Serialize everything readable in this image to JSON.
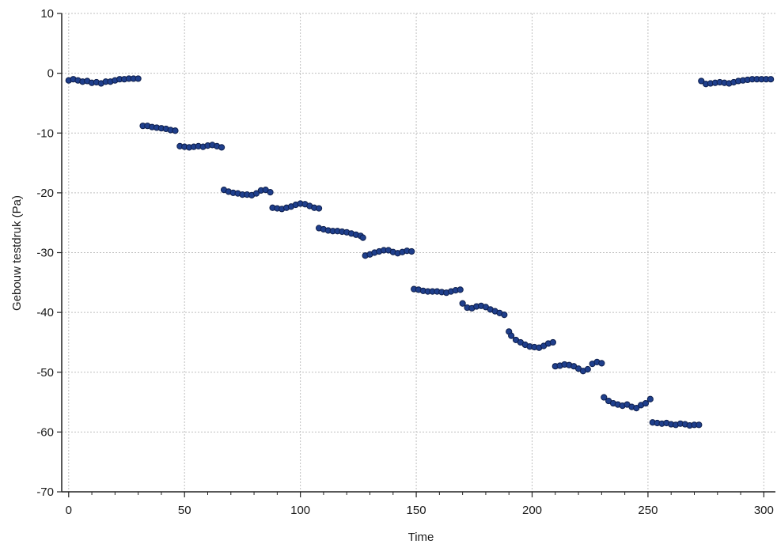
{
  "chart_data": {
    "type": "scatter",
    "title": "",
    "xlabel": "Time",
    "ylabel": "Gebouw testdruk (Pa)",
    "xlim": [
      -3,
      305
    ],
    "ylim": [
      -70,
      10
    ],
    "x_ticks": [
      0,
      50,
      100,
      150,
      200,
      250,
      300
    ],
    "y_ticks": [
      10,
      0,
      -10,
      -20,
      -30,
      -40,
      -50,
      -60,
      -70
    ],
    "grid": true,
    "legend": "none",
    "colors": {
      "marker": "#1f3f8c",
      "marker_edge": "#0e1f4d",
      "axis": "#222222",
      "grid": "#bfbfbf"
    },
    "series": [
      {
        "points": [
          [
            0,
            -1.2
          ],
          [
            2,
            -1.0
          ],
          [
            4,
            -1.2
          ],
          [
            6,
            -1.4
          ],
          [
            8,
            -1.3
          ],
          [
            10,
            -1.6
          ],
          [
            12,
            -1.5
          ],
          [
            14,
            -1.7
          ],
          [
            16,
            -1.4
          ],
          [
            18,
            -1.4
          ],
          [
            20,
            -1.2
          ],
          [
            22,
            -1.0
          ],
          [
            24,
            -1.0
          ],
          [
            26,
            -0.9
          ],
          [
            28,
            -0.9
          ],
          [
            30,
            -0.9
          ],
          [
            32,
            -8.8
          ],
          [
            34,
            -8.8
          ],
          [
            36,
            -9.0
          ],
          [
            38,
            -9.1
          ],
          [
            40,
            -9.2
          ],
          [
            42,
            -9.3
          ],
          [
            44,
            -9.5
          ],
          [
            46,
            -9.6
          ],
          [
            48,
            -12.2
          ],
          [
            50,
            -12.3
          ],
          [
            52,
            -12.4
          ],
          [
            54,
            -12.3
          ],
          [
            56,
            -12.2
          ],
          [
            58,
            -12.3
          ],
          [
            60,
            -12.1
          ],
          [
            62,
            -12.0
          ],
          [
            64,
            -12.2
          ],
          [
            66,
            -12.4
          ],
          [
            67,
            -19.5
          ],
          [
            69,
            -19.8
          ],
          [
            71,
            -20.0
          ],
          [
            73,
            -20.1
          ],
          [
            75,
            -20.3
          ],
          [
            77,
            -20.3
          ],
          [
            79,
            -20.4
          ],
          [
            81,
            -20.1
          ],
          [
            83,
            -19.6
          ],
          [
            85,
            -19.5
          ],
          [
            87,
            -19.9
          ],
          [
            88,
            -22.5
          ],
          [
            90,
            -22.6
          ],
          [
            92,
            -22.7
          ],
          [
            94,
            -22.5
          ],
          [
            96,
            -22.3
          ],
          [
            98,
            -22.0
          ],
          [
            100,
            -21.8
          ],
          [
            102,
            -21.9
          ],
          [
            104,
            -22.2
          ],
          [
            106,
            -22.5
          ],
          [
            108,
            -22.6
          ],
          [
            108,
            -25.9
          ],
          [
            110,
            -26.1
          ],
          [
            112,
            -26.3
          ],
          [
            114,
            -26.4
          ],
          [
            116,
            -26.4
          ],
          [
            118,
            -26.5
          ],
          [
            120,
            -26.6
          ],
          [
            122,
            -26.8
          ],
          [
            124,
            -27.0
          ],
          [
            126,
            -27.2
          ],
          [
            127,
            -27.5
          ],
          [
            128,
            -30.5
          ],
          [
            130,
            -30.3
          ],
          [
            132,
            -30.0
          ],
          [
            134,
            -29.8
          ],
          [
            136,
            -29.6
          ],
          [
            138,
            -29.6
          ],
          [
            140,
            -29.9
          ],
          [
            142,
            -30.1
          ],
          [
            144,
            -29.9
          ],
          [
            146,
            -29.7
          ],
          [
            148,
            -29.8
          ],
          [
            149,
            -36.1
          ],
          [
            151,
            -36.2
          ],
          [
            153,
            -36.4
          ],
          [
            155,
            -36.5
          ],
          [
            157,
            -36.5
          ],
          [
            159,
            -36.5
          ],
          [
            161,
            -36.6
          ],
          [
            163,
            -36.7
          ],
          [
            165,
            -36.5
          ],
          [
            167,
            -36.3
          ],
          [
            169,
            -36.2
          ],
          [
            170,
            -38.5
          ],
          [
            172,
            -39.2
          ],
          [
            174,
            -39.3
          ],
          [
            176,
            -39.0
          ],
          [
            178,
            -38.9
          ],
          [
            180,
            -39.1
          ],
          [
            182,
            -39.5
          ],
          [
            184,
            -39.8
          ],
          [
            186,
            -40.1
          ],
          [
            188,
            -40.4
          ],
          [
            190,
            -43.2
          ],
          [
            191,
            -43.9
          ],
          [
            193,
            -44.6
          ],
          [
            195,
            -45.0
          ],
          [
            197,
            -45.4
          ],
          [
            199,
            -45.7
          ],
          [
            201,
            -45.8
          ],
          [
            203,
            -45.9
          ],
          [
            205,
            -45.6
          ],
          [
            207,
            -45.2
          ],
          [
            209,
            -45.0
          ],
          [
            210,
            -49.0
          ],
          [
            212,
            -48.9
          ],
          [
            214,
            -48.7
          ],
          [
            216,
            -48.8
          ],
          [
            218,
            -49.0
          ],
          [
            220,
            -49.4
          ],
          [
            222,
            -49.8
          ],
          [
            224,
            -49.5
          ],
          [
            226,
            -48.6
          ],
          [
            228,
            -48.3
          ],
          [
            230,
            -48.5
          ],
          [
            231,
            -54.2
          ],
          [
            233,
            -54.8
          ],
          [
            235,
            -55.2
          ],
          [
            237,
            -55.4
          ],
          [
            239,
            -55.6
          ],
          [
            241,
            -55.4
          ],
          [
            243,
            -55.8
          ],
          [
            245,
            -56.0
          ],
          [
            247,
            -55.5
          ],
          [
            249,
            -55.2
          ],
          [
            251,
            -54.5
          ],
          [
            252,
            -58.4
          ],
          [
            254,
            -58.5
          ],
          [
            256,
            -58.6
          ],
          [
            258,
            -58.5
          ],
          [
            260,
            -58.7
          ],
          [
            262,
            -58.8
          ],
          [
            264,
            -58.6
          ],
          [
            266,
            -58.7
          ],
          [
            268,
            -58.9
          ],
          [
            270,
            -58.8
          ],
          [
            272,
            -58.8
          ],
          [
            273,
            -1.3
          ],
          [
            275,
            -1.8
          ],
          [
            277,
            -1.7
          ],
          [
            279,
            -1.6
          ],
          [
            281,
            -1.5
          ],
          [
            283,
            -1.6
          ],
          [
            285,
            -1.7
          ],
          [
            287,
            -1.5
          ],
          [
            289,
            -1.3
          ],
          [
            291,
            -1.2
          ],
          [
            293,
            -1.1
          ],
          [
            295,
            -1.0
          ],
          [
            297,
            -1.0
          ],
          [
            299,
            -1.0
          ],
          [
            301,
            -1.0
          ],
          [
            303,
            -1.0
          ]
        ]
      }
    ]
  }
}
